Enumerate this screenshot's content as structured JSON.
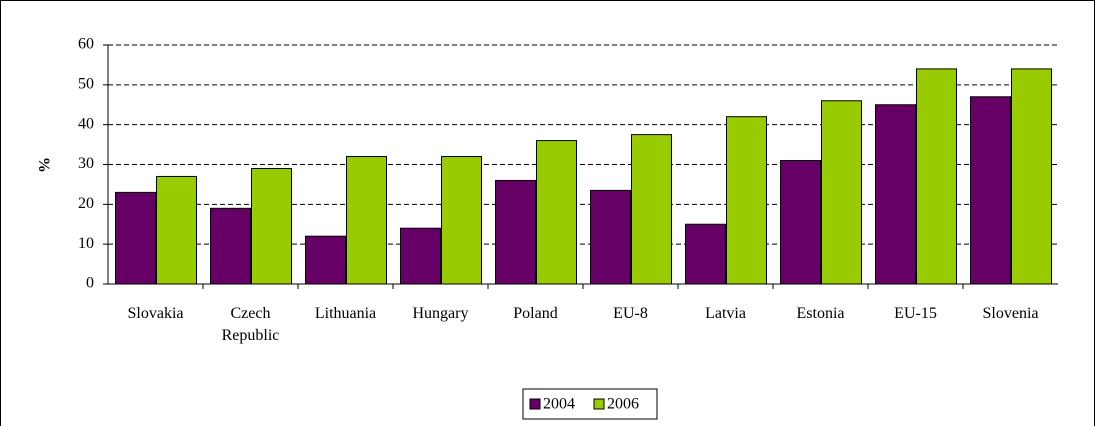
{
  "chart_data": {
    "type": "bar",
    "ylabel": "%",
    "categories": [
      "Slovakia",
      "Czech Republic",
      "Lithuania",
      "Hungary",
      "Poland",
      "EU-8",
      "Latvia",
      "Estonia",
      "EU-15",
      "Slovenia"
    ],
    "series": [
      {
        "name": "2004",
        "color": "#660066",
        "values": [
          23,
          19,
          12,
          14,
          26,
          23.5,
          15,
          31,
          45,
          47
        ]
      },
      {
        "name": "2006",
        "color": "#99cc00",
        "values": [
          27,
          29,
          32,
          32,
          36,
          37.5,
          42,
          46,
          54,
          54
        ]
      }
    ],
    "ylim": [
      0,
      60
    ],
    "yticks": [
      0,
      10,
      20,
      30,
      40,
      50,
      60
    ],
    "grid": true,
    "legend": "bottom"
  }
}
